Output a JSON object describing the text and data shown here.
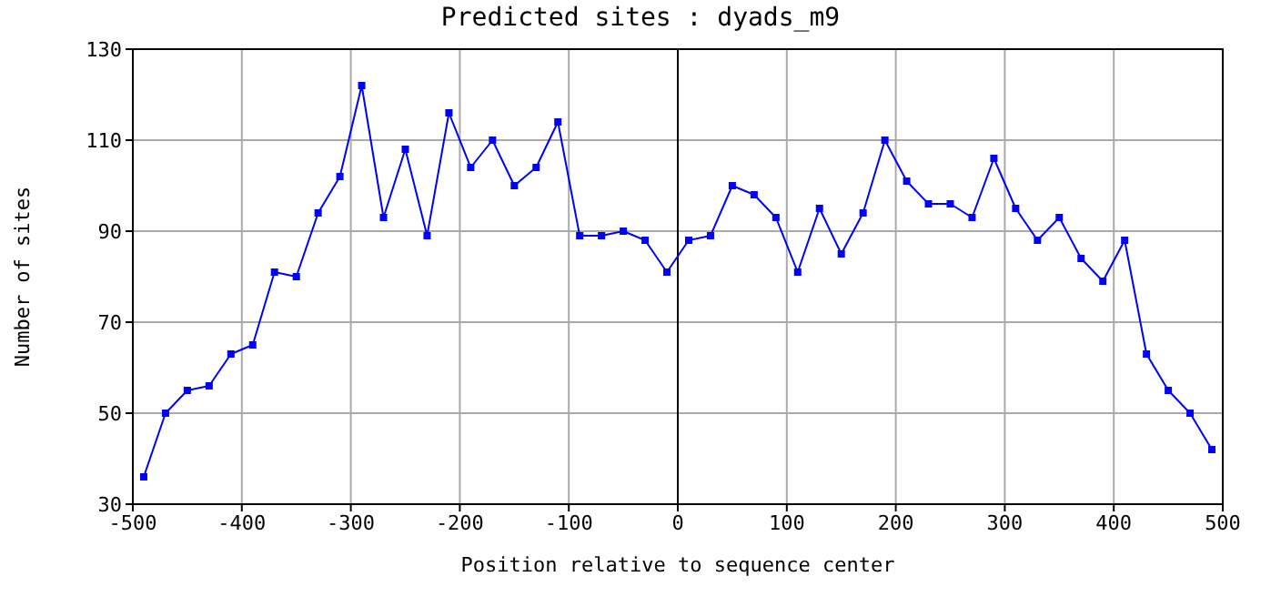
{
  "chart_data": {
    "type": "line",
    "title": "Predicted sites : dyads_m9",
    "xlabel": "Position relative to sequence center",
    "ylabel": "Number of sites",
    "x": [
      -490,
      -470,
      -450,
      -430,
      -410,
      -390,
      -370,
      -350,
      -330,
      -310,
      -290,
      -270,
      -250,
      -230,
      -210,
      -190,
      -170,
      -150,
      -130,
      -110,
      -90,
      -70,
      -50,
      -30,
      -10,
      10,
      30,
      50,
      70,
      90,
      110,
      130,
      150,
      170,
      190,
      210,
      230,
      250,
      270,
      290,
      310,
      330,
      350,
      370,
      390,
      410,
      430,
      450,
      470,
      490
    ],
    "series": [
      {
        "color": "#0000ff",
        "values": [
          36,
          50,
          55,
          56,
          63,
          65,
          81,
          80,
          94,
          102,
          122,
          93,
          108,
          89,
          116,
          104,
          110,
          100,
          104,
          114,
          89,
          89,
          90,
          88,
          81,
          88,
          89,
          100,
          98,
          93,
          81,
          95,
          85,
          94,
          110,
          101,
          96,
          96,
          93,
          106,
          95,
          88,
          93,
          84,
          79,
          88,
          63,
          55,
          50,
          42
        ]
      }
    ],
    "xlim": [
      -500,
      500
    ],
    "xticks": [
      -500,
      -400,
      -300,
      -200,
      -100,
      0,
      100,
      200,
      300,
      400,
      500
    ],
    "ylim": [
      30,
      130
    ],
    "yticks": [
      30,
      50,
      70,
      90,
      110,
      130
    ],
    "ref_lines": [
      {
        "axis": "x",
        "value": 0,
        "color": "#000000"
      }
    ],
    "grid": true,
    "legend": false,
    "marker": "square",
    "line_style": "solid"
  }
}
